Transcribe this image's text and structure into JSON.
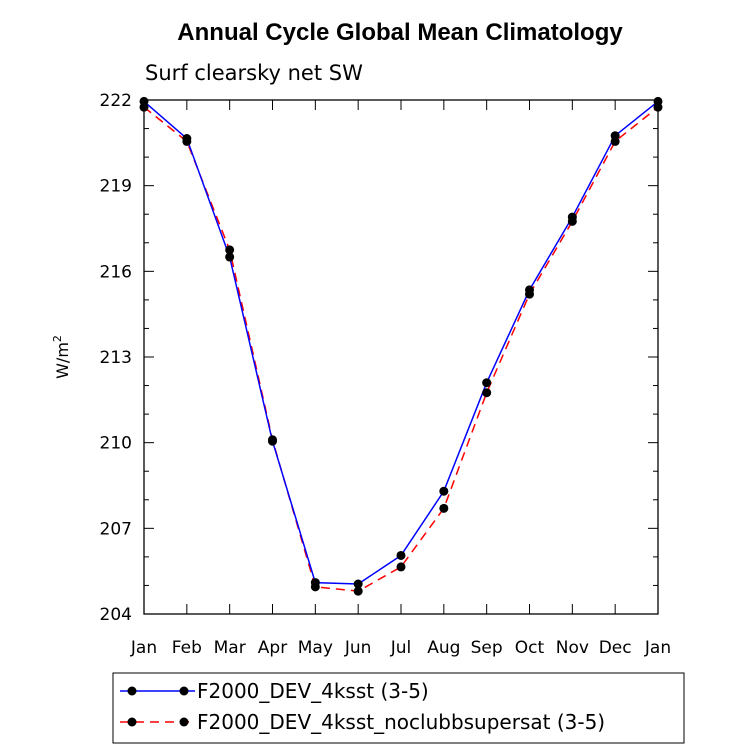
{
  "chart_data": {
    "type": "line",
    "title": "Annual Cycle Global Mean Climatology",
    "subtitle": "Surf clearsky net SW",
    "ylabel": "W/m",
    "ylabel_superscript": "2",
    "categories": [
      "Jan",
      "Feb",
      "Mar",
      "Apr",
      "May",
      "Jun",
      "Jul",
      "Aug",
      "Sep",
      "Oct",
      "Nov",
      "Dec",
      "Jan"
    ],
    "ylim": [
      204,
      222
    ],
    "yticks": [
      204,
      207,
      210,
      213,
      216,
      219,
      222
    ],
    "grid": false,
    "legend_placement": "bottom",
    "series": [
      {
        "name": "F2000_DEV_4ksst (3-5)",
        "color": "#0000ff",
        "dash": "solid",
        "marker": "filled-circle",
        "values": [
          221.95,
          220.65,
          216.5,
          210.05,
          205.1,
          205.05,
          206.05,
          208.3,
          212.1,
          215.35,
          217.9,
          220.75,
          221.95
        ]
      },
      {
        "name": "F2000_DEV_4ksst_noclubbsupersat (3-5)",
        "color": "#ff0000",
        "dash": "dashed",
        "marker": "filled-circle",
        "values": [
          221.75,
          220.55,
          216.75,
          210.1,
          204.95,
          204.8,
          205.65,
          207.7,
          211.75,
          215.2,
          217.75,
          220.55,
          221.75
        ]
      }
    ]
  }
}
